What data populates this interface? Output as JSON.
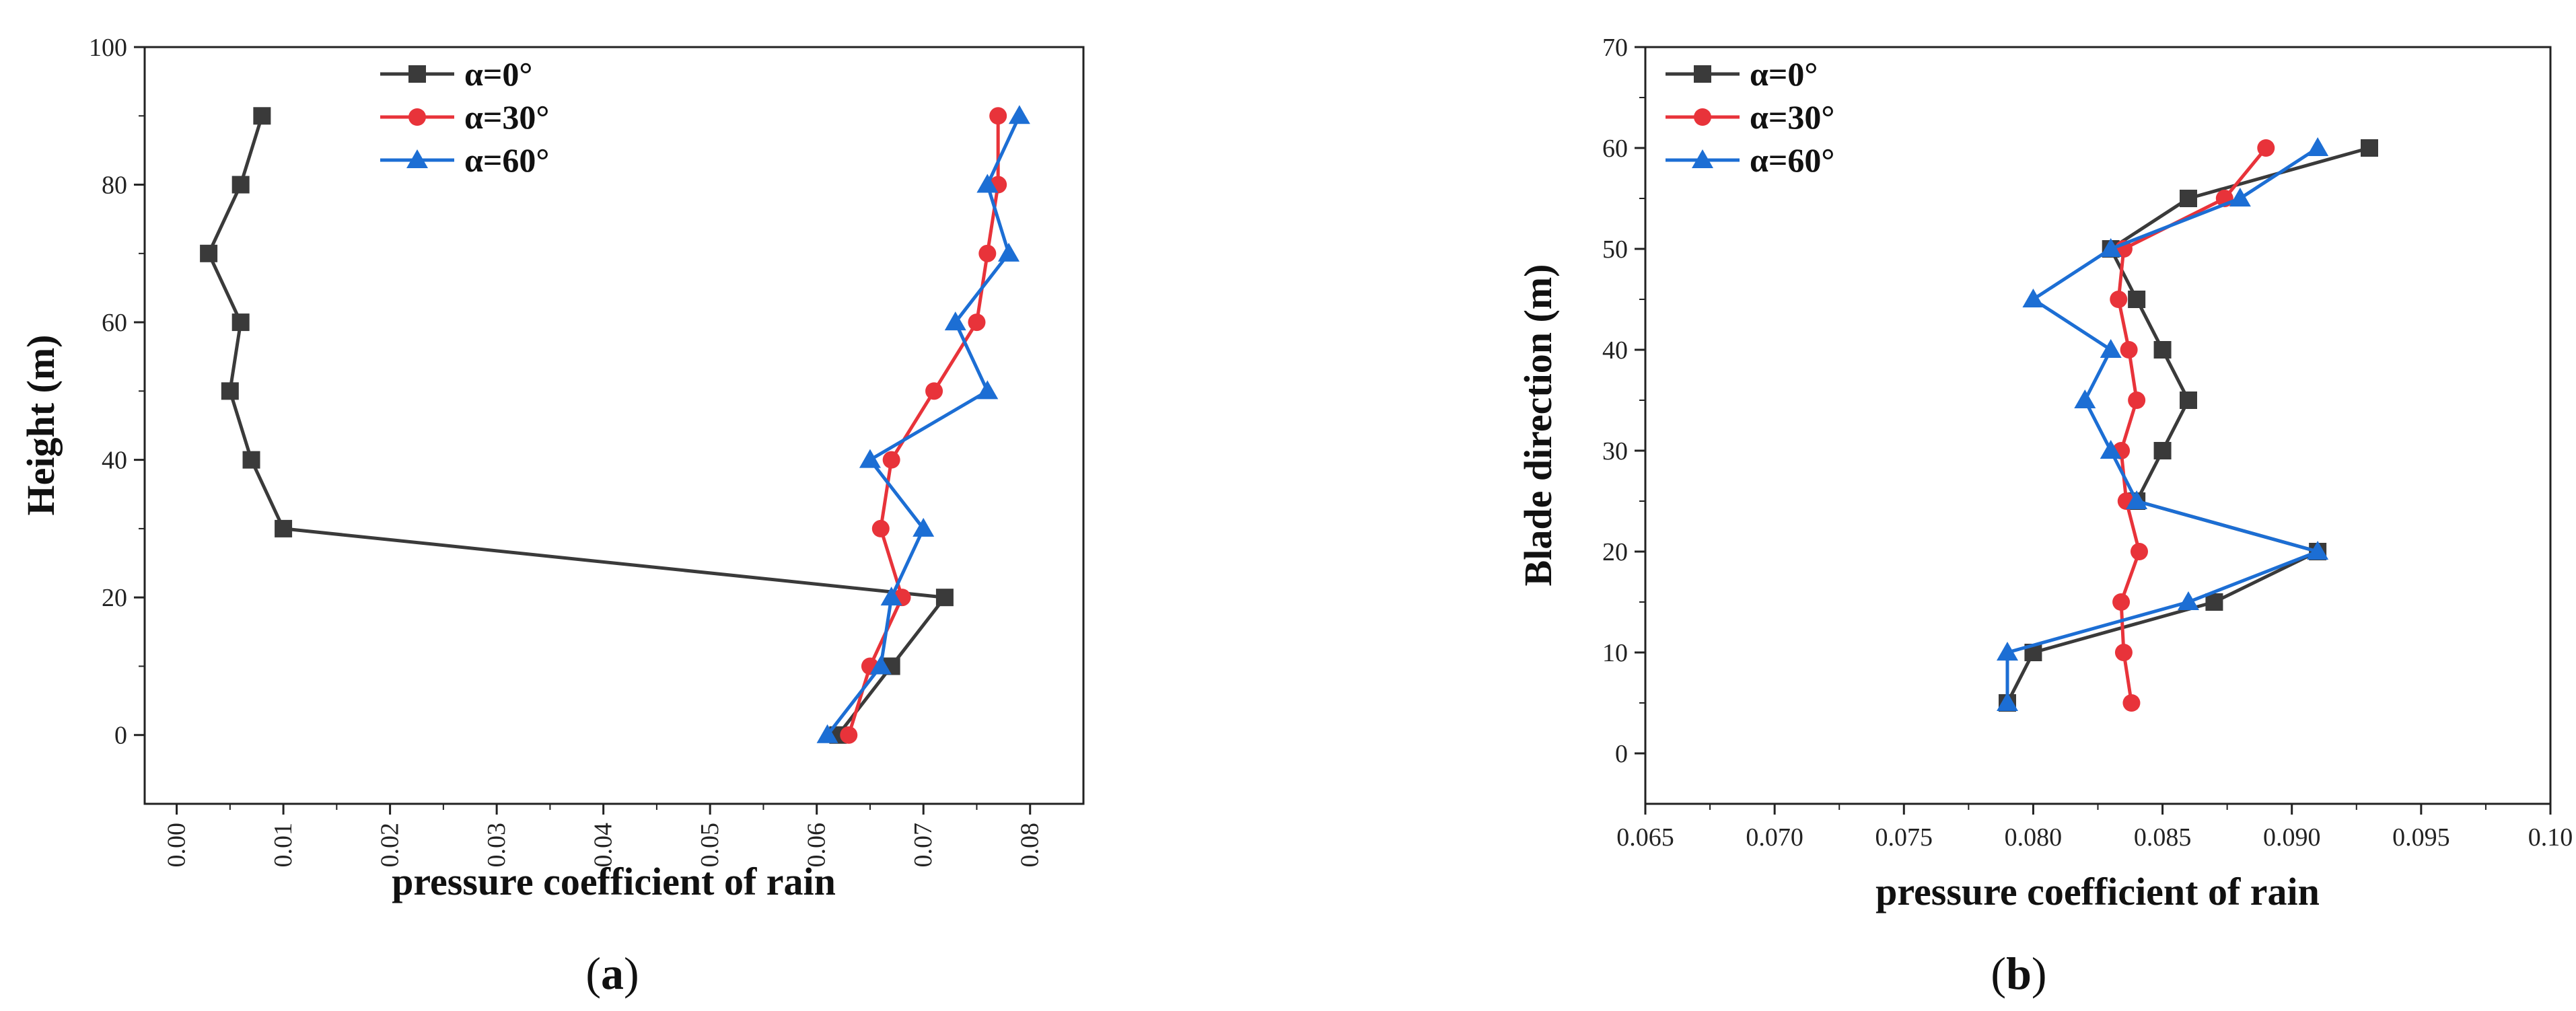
{
  "chart_data": [
    {
      "type": "line",
      "panel_label": "a",
      "caption_open": "(",
      "caption_close": ")",
      "xlabel": "pressure coefficient of rain",
      "ylabel": "Height (m)",
      "xlim": [
        -0.003,
        0.085
      ],
      "ylim": [
        -10,
        100
      ],
      "xticks": [
        0.0,
        0.01,
        0.02,
        0.03,
        0.04,
        0.05,
        0.06,
        0.07,
        0.08
      ],
      "xtick_labels": [
        "0.00",
        "0.01",
        "0.02",
        "0.03",
        "0.04",
        "0.05",
        "0.06",
        "0.07",
        "0.08"
      ],
      "yticks": [
        0,
        20,
        40,
        60,
        80,
        100
      ],
      "ytick_labels": [
        "0",
        "20",
        "40",
        "60",
        "80",
        "100"
      ],
      "legend": "top-center",
      "series": [
        {
          "name": "α=0°",
          "color": "#3a3a3a",
          "marker": "square",
          "x": [
            0.062,
            0.067,
            0.072,
            0.01,
            0.007,
            0.005,
            0.006,
            0.003,
            0.006,
            0.008
          ],
          "y": [
            0,
            10,
            20,
            30,
            40,
            50,
            60,
            70,
            80,
            90
          ]
        },
        {
          "name": "α=30°",
          "color": "#e8333a",
          "marker": "circle",
          "x": [
            0.063,
            0.065,
            0.068,
            0.066,
            0.067,
            0.071,
            0.075,
            0.076,
            0.077,
            0.077
          ],
          "y": [
            0,
            10,
            20,
            30,
            40,
            50,
            60,
            70,
            80,
            90
          ]
        },
        {
          "name": "α=60°",
          "color": "#1c6ed4",
          "marker": "triangle",
          "x": [
            0.061,
            0.066,
            0.067,
            0.07,
            0.065,
            0.076,
            0.073,
            0.078,
            0.076,
            0.079
          ],
          "y": [
            0,
            10,
            20,
            30,
            40,
            50,
            60,
            70,
            80,
            90
          ]
        }
      ]
    },
    {
      "type": "line",
      "panel_label": "b",
      "caption_open": "(",
      "caption_close": ")",
      "xlabel": "pressure coefficient of rain",
      "ylabel": "Blade direction (m)",
      "xlim": [
        0.065,
        0.1
      ],
      "ylim": [
        -5,
        70
      ],
      "xticks": [
        0.065,
        0.07,
        0.075,
        0.08,
        0.085,
        0.09,
        0.095,
        0.1
      ],
      "xtick_labels": [
        "0.065",
        "0.070",
        "0.075",
        "0.080",
        "0.085",
        "0.090",
        "0.095",
        "0.10"
      ],
      "yticks": [
        0,
        10,
        20,
        30,
        40,
        50,
        60,
        70
      ],
      "ytick_labels": [
        "0",
        "10",
        "20",
        "30",
        "40",
        "50",
        "60",
        "70"
      ],
      "legend": "top-left",
      "series": [
        {
          "name": "α=0°",
          "color": "#3a3a3a",
          "marker": "square",
          "x": [
            0.079,
            0.08,
            0.087,
            0.091,
            0.084,
            0.085,
            0.086,
            0.085,
            0.084,
            0.083,
            0.086,
            0.093
          ],
          "y": [
            5,
            10,
            15,
            20,
            25,
            30,
            35,
            40,
            45,
            50,
            55,
            60
          ]
        },
        {
          "name": "α=30°",
          "color": "#e8333a",
          "marker": "circle",
          "x": [
            0.0838,
            0.0835,
            0.0834,
            0.0841,
            0.0836,
            0.0834,
            0.084,
            0.0837,
            0.0833,
            0.0835,
            0.0874,
            0.089
          ],
          "y": [
            5,
            10,
            15,
            20,
            25,
            30,
            35,
            40,
            45,
            50,
            55,
            60
          ]
        },
        {
          "name": "α=60°",
          "color": "#1c6ed4",
          "marker": "triangle",
          "x": [
            0.079,
            0.079,
            0.086,
            0.091,
            0.084,
            0.083,
            0.082,
            0.083,
            0.08,
            0.083,
            0.088,
            0.091
          ],
          "y": [
            5,
            10,
            15,
            20,
            25,
            30,
            35,
            40,
            45,
            50,
            55,
            60
          ]
        }
      ]
    }
  ]
}
